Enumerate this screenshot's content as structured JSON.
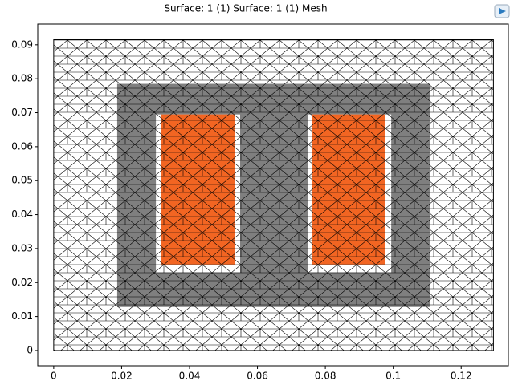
{
  "chart_data": {
    "type": "geometry",
    "title": "Surface: 1 (1)  Surface: 1 (1) Mesh",
    "xlim": [
      -0.0047,
      0.1339
    ],
    "ylim": [
      -0.0045,
      0.0961
    ],
    "xticks": [
      0,
      0.02,
      0.04,
      0.06,
      0.08,
      0.1,
      0.12
    ],
    "yticks": [
      0,
      0.01,
      0.02,
      0.03,
      0.04,
      0.05,
      0.06,
      0.07,
      0.08,
      0.09
    ],
    "regions": [
      {
        "x": [
          0,
          0.1295
        ],
        "y": [
          0,
          0.0915
        ],
        "color": "#ffffff"
      },
      {
        "x": [
          0.0187,
          0.1108
        ],
        "y": [
          0.0128,
          0.0785
        ],
        "color": "#7f7f7f"
      },
      {
        "x": [
          0.0301,
          0.0549
        ],
        "y": [
          0.023,
          0.0695
        ],
        "color": "#ffffff"
      },
      {
        "x": [
          0.0749,
          0.0994
        ],
        "y": [
          0.023,
          0.0695
        ],
        "color": "#ffffff"
      },
      {
        "x": [
          0.0317,
          0.0533
        ],
        "y": [
          0.0253,
          0.0695
        ],
        "color": "#f26522"
      },
      {
        "x": [
          0.076,
          0.0975
        ],
        "y": [
          0.0253,
          0.0695
        ],
        "color": "#f26522"
      }
    ]
  }
}
